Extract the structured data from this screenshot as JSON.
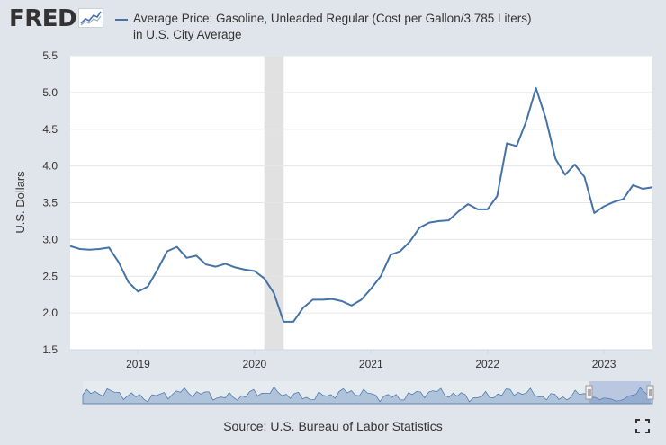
{
  "brand": {
    "name": "FRED",
    "logo_icon": "fred-chart-icon"
  },
  "legend": {
    "text": "Average Price: Gasoline, Unleaded Regular (Cost per Gallon/3.785 Liters) in U.S. City Average",
    "color": "#4572a7"
  },
  "source": "Source: U.S. Bureau of Labor Statistics",
  "controls": {
    "fullscreen_icon": "fullscreen-icon"
  },
  "colors": {
    "background": "#dfe5ea",
    "plot_background": "#ffffff",
    "line": "#4572a7",
    "recession": "#e1e1e1",
    "navigator_fill": "#afc3da"
  },
  "chart_data": {
    "type": "line",
    "title": "",
    "ylabel": "U.S. Dollars",
    "xlabel": "",
    "ylim": [
      1.5,
      5.5
    ],
    "yticks": [
      1.5,
      2.0,
      2.5,
      3.0,
      3.5,
      4.0,
      4.5,
      5.0,
      5.5
    ],
    "xlim": [
      "2018-06",
      "2023-06"
    ],
    "xticks": [
      "2019",
      "2020",
      "2021",
      "2022",
      "2023"
    ],
    "grid": true,
    "legend_position": "top",
    "recession_shading": [
      {
        "start": "2020-02",
        "end": "2020-04"
      }
    ],
    "series": [
      {
        "name": "Average Price: Gasoline, Unleaded Regular (Cost per Gallon/3.785 Liters) in U.S. City Average",
        "x": [
          "2018-06",
          "2018-07",
          "2018-08",
          "2018-09",
          "2018-10",
          "2018-11",
          "2018-12",
          "2019-01",
          "2019-02",
          "2019-03",
          "2019-04",
          "2019-05",
          "2019-06",
          "2019-07",
          "2019-08",
          "2019-09",
          "2019-10",
          "2019-11",
          "2019-12",
          "2020-01",
          "2020-02",
          "2020-03",
          "2020-04",
          "2020-05",
          "2020-06",
          "2020-07",
          "2020-08",
          "2020-09",
          "2020-10",
          "2020-11",
          "2020-12",
          "2021-01",
          "2021-02",
          "2021-03",
          "2021-04",
          "2021-05",
          "2021-06",
          "2021-07",
          "2021-08",
          "2021-09",
          "2021-10",
          "2021-11",
          "2021-12",
          "2022-01",
          "2022-02",
          "2022-03",
          "2022-04",
          "2022-05",
          "2022-06",
          "2022-07",
          "2022-08",
          "2022-09",
          "2022-10",
          "2022-11",
          "2022-12",
          "2023-01",
          "2023-02",
          "2023-03",
          "2023-04",
          "2023-05",
          "2023-06"
        ],
        "values": [
          2.91,
          2.87,
          2.86,
          2.87,
          2.89,
          2.69,
          2.42,
          2.29,
          2.36,
          2.59,
          2.84,
          2.9,
          2.75,
          2.78,
          2.66,
          2.63,
          2.67,
          2.62,
          2.59,
          2.57,
          2.47,
          2.27,
          1.88,
          1.88,
          2.07,
          2.18,
          2.18,
          2.19,
          2.16,
          2.1,
          2.18,
          2.33,
          2.5,
          2.79,
          2.84,
          2.97,
          3.16,
          3.23,
          3.25,
          3.26,
          3.38,
          3.48,
          3.41,
          3.41,
          3.59,
          4.31,
          4.27,
          4.61,
          5.06,
          4.65,
          4.1,
          3.88,
          4.02,
          3.85,
          3.36,
          3.45,
          3.51,
          3.55,
          3.74,
          3.69,
          3.71
        ]
      }
    ]
  }
}
